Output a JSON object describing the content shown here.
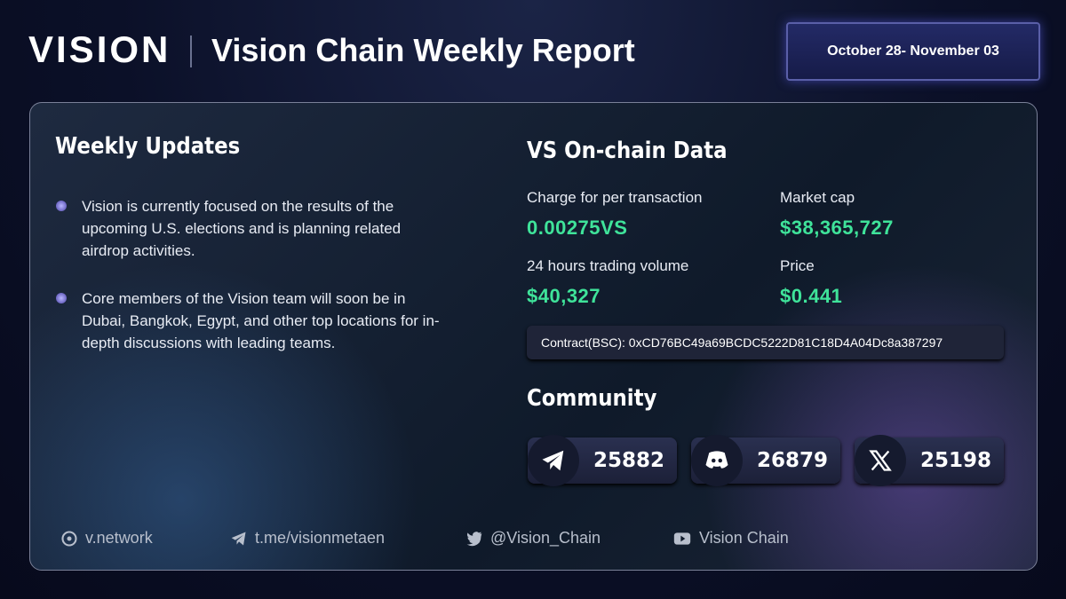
{
  "header": {
    "brand": "VISION",
    "title": "Vision Chain Weekly Report",
    "date": "October 28- November 03"
  },
  "updates": {
    "title": "Weekly Updates",
    "items": [
      "Vision is currently focused on the results of the upcoming U.S. elections and is planning related airdrop activities.",
      "Core members of the Vision team will soon be in Dubai, Bangkok, Egypt, and other top locations for in-depth discussions with leading teams."
    ]
  },
  "onchain": {
    "title": "VS On-chain Data",
    "stats": [
      {
        "label": "Charge for per transaction",
        "value": "0.00275VS"
      },
      {
        "label": "Market cap",
        "value": "$38,365,727"
      },
      {
        "label": "24 hours trading volume",
        "value": "$40,327"
      },
      {
        "label": "Price",
        "value": "$0.441"
      }
    ],
    "contract": "Contract(BSC): 0xCD76BC49a69BCDC5222D81C18D4A04Dc8a387297"
  },
  "community": {
    "title": "Community",
    "counts": [
      25882,
      26879,
      25198
    ]
  },
  "footer": {
    "links": [
      "v.network",
      "t.me/visionmetaen",
      "@Vision_Chain",
      "Vision Chain"
    ]
  }
}
